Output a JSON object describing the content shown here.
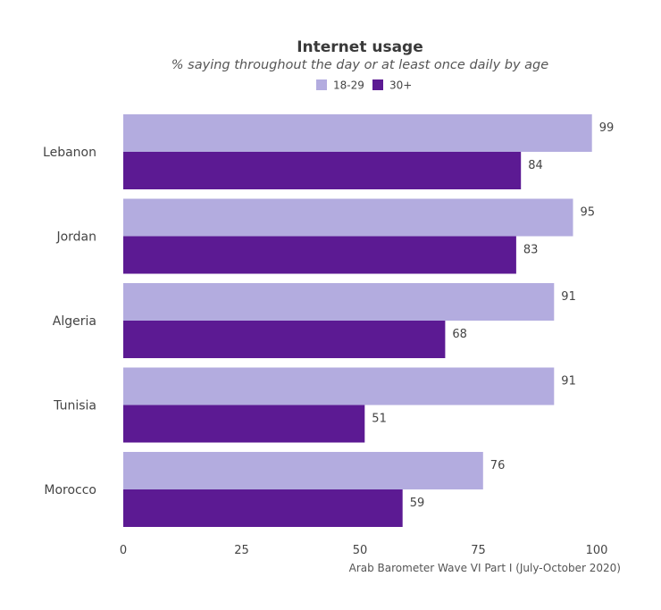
{
  "chart_data": {
    "type": "bar",
    "orientation": "horizontal",
    "title": "Internet usage",
    "subtitle": "% saying throughout the day or at least once daily by age",
    "categories": [
      "Lebanon",
      "Jordan",
      "Algeria",
      "Tunisia",
      "Morocco"
    ],
    "series": [
      {
        "name": "18-29",
        "values": [
          99,
          95,
          91,
          91,
          76
        ],
        "color": "#b3acdf"
      },
      {
        "name": "30+",
        "values": [
          84,
          83,
          68,
          51,
          59
        ],
        "color": "#5c1a93"
      }
    ],
    "xlim": [
      0,
      100
    ],
    "xticks": [
      "0",
      "25",
      "50",
      "75",
      "100"
    ],
    "xlabel": "",
    "ylabel": "",
    "grid": false,
    "legend_position": "top-center",
    "data_labels": true,
    "source": "Arab Barometer Wave VI Part I (July-October 2020)"
  }
}
